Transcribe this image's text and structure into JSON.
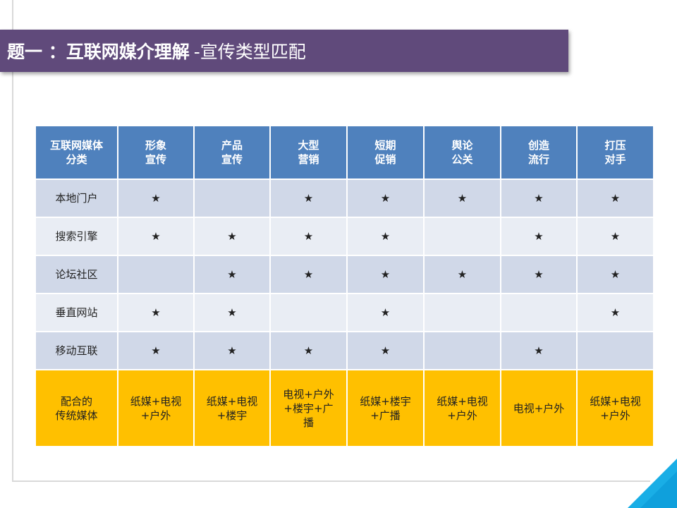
{
  "title": {
    "main": "题一  ：互联网媒介理解",
    "sub": "-宣传类型匹配"
  },
  "table": {
    "header": {
      "first": [
        "互联网媒体",
        "分类"
      ],
      "cols": [
        [
          "形象",
          "宣传"
        ],
        [
          "产品",
          "宣传"
        ],
        [
          "大型",
          "营销"
        ],
        [
          "短期",
          "促销"
        ],
        [
          "舆论",
          "公关"
        ],
        [
          "创造",
          "流行"
        ],
        [
          "打压",
          "对手"
        ]
      ]
    },
    "star_glyph": "★",
    "rows": [
      {
        "label": "本地门户",
        "marks": [
          true,
          false,
          true,
          true,
          true,
          true,
          true
        ]
      },
      {
        "label": "搜索引擎",
        "marks": [
          true,
          true,
          true,
          true,
          false,
          true,
          true
        ]
      },
      {
        "label": "论坛社区",
        "marks": [
          false,
          true,
          true,
          true,
          true,
          true,
          true
        ]
      },
      {
        "label": "垂直网站",
        "marks": [
          true,
          true,
          false,
          true,
          false,
          false,
          true
        ]
      },
      {
        "label": "移动互联",
        "marks": [
          true,
          true,
          true,
          true,
          false,
          true,
          false
        ]
      }
    ],
    "footer": {
      "label": [
        "配合的",
        "传统媒体"
      ],
      "cells": [
        [
          "纸媒+电视",
          "+户外"
        ],
        [
          "纸媒+电视",
          "+楼宇"
        ],
        [
          "电视+户外",
          "+楼宇+广",
          "播"
        ],
        [
          "纸媒+楼宇",
          "+广播"
        ],
        [
          "纸媒+电视",
          "+户外"
        ],
        [
          "电视+户外"
        ],
        [
          "纸媒+电视",
          "+户外"
        ]
      ]
    }
  },
  "colors": {
    "title_bar": "#604a7b",
    "header": "#4f81bd",
    "row_dark": "#d0d8e8",
    "row_light": "#e9edf4",
    "footer": "#ffc000",
    "corner_accent": "#19aee6"
  }
}
